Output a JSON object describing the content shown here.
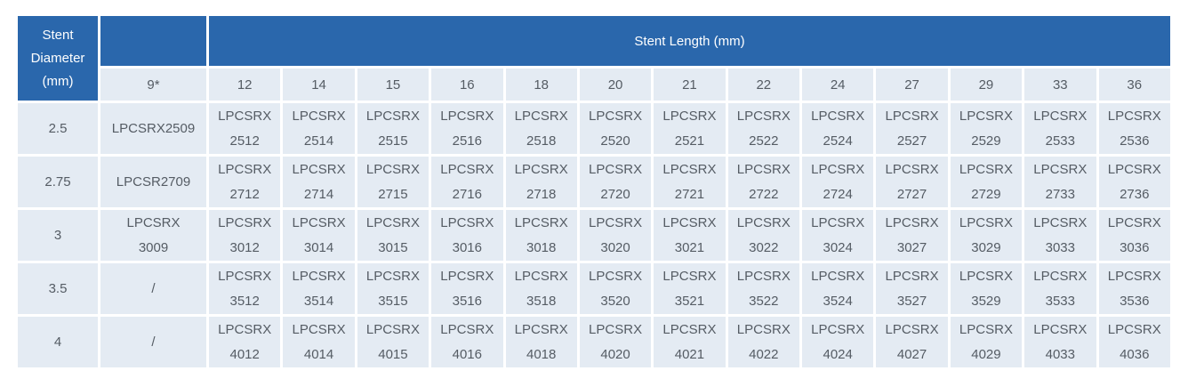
{
  "colors": {
    "header_blue": "#2a67ac",
    "cell_background": "#e4ebf3",
    "cell_text": "#555c64",
    "grid_white": "#ffffff"
  },
  "table": {
    "corner_header": "Stent\nDiameter\n(mm)",
    "group_header": "Stent Length (mm)",
    "length_headers": [
      "9*",
      "12",
      "14",
      "15",
      "16",
      "18",
      "20",
      "21",
      "22",
      "24",
      "27",
      "29",
      "33",
      "36"
    ],
    "rows": [
      {
        "diameter": "2.5",
        "cells": [
          "LPCSRX2509",
          "LPCSRX\n2512",
          "LPCSRX\n2514",
          "LPCSRX\n2515",
          "LPCSRX\n2516",
          "LPCSRX\n2518",
          "LPCSRX\n2520",
          "LPCSRX\n2521",
          "LPCSRX\n2522",
          "LPCSRX\n2524",
          "LPCSRX\n2527",
          "LPCSRX\n2529",
          "LPCSRX\n2533",
          "LPCSRX\n2536"
        ]
      },
      {
        "diameter": "2.75",
        "cells": [
          "LPCSR2709",
          "LPCSRX\n2712",
          "LPCSRX\n2714",
          "LPCSRX\n2715",
          "LPCSRX\n2716",
          "LPCSRX\n2718",
          "LPCSRX\n2720",
          "LPCSRX\n2721",
          "LPCSRX\n2722",
          "LPCSRX\n2724",
          "LPCSRX\n2727",
          "LPCSRX\n2729",
          "LPCSRX\n2733",
          "LPCSRX\n2736"
        ]
      },
      {
        "diameter": "3",
        "cells": [
          "LPCSRX\n3009",
          "LPCSRX\n3012",
          "LPCSRX\n3014",
          "LPCSRX\n3015",
          "LPCSRX\n3016",
          "LPCSRX\n3018",
          "LPCSRX\n3020",
          "LPCSRX\n3021",
          "LPCSRX\n3022",
          "LPCSRX\n3024",
          "LPCSRX\n3027",
          "LPCSRX\n3029",
          "LPCSRX\n3033",
          "LPCSRX\n3036"
        ]
      },
      {
        "diameter": "3.5",
        "cells": [
          "/",
          "LPCSRX\n3512",
          "LPCSRX\n3514",
          "LPCSRX\n3515",
          "LPCSRX\n3516",
          "LPCSRX\n3518",
          "LPCSRX\n3520",
          "LPCSRX\n3521",
          "LPCSRX\n3522",
          "LPCSRX\n3524",
          "LPCSRX\n3527",
          "LPCSRX\n3529",
          "LPCSRX\n3533",
          "LPCSRX\n3536"
        ]
      },
      {
        "diameter": "4",
        "cells": [
          "/",
          "LPCSRX\n4012",
          "LPCSRX\n4014",
          "LPCSRX\n4015",
          "LPCSRX\n4016",
          "LPCSRX\n4018",
          "LPCSRX\n4020",
          "LPCSRX\n4021",
          "LPCSRX\n4022",
          "LPCSRX\n4024",
          "LPCSRX\n4027",
          "LPCSRX\n4029",
          "LPCSRX\n4033",
          "LPCSRX\n4036"
        ]
      }
    ]
  },
  "chart_data": {
    "type": "table",
    "title": "Stent size matrix",
    "row_axis_label": "Stent Diameter (mm)",
    "column_axis_label": "Stent Length (mm)",
    "columns": [
      "9*",
      "12",
      "14",
      "15",
      "16",
      "18",
      "20",
      "21",
      "22",
      "24",
      "27",
      "29",
      "33",
      "36"
    ],
    "row_categories": [
      "2.5",
      "2.75",
      "3",
      "3.5",
      "4"
    ],
    "values": [
      [
        "LPCSRX2509",
        "LPCSRX 2512",
        "LPCSRX 2514",
        "LPCSRX 2515",
        "LPCSRX 2516",
        "LPCSRX 2518",
        "LPCSRX 2520",
        "LPCSRX 2521",
        "LPCSRX 2522",
        "LPCSRX 2524",
        "LPCSRX 2527",
        "LPCSRX 2529",
        "LPCSRX 2533",
        "LPCSRX 2536"
      ],
      [
        "LPCSR2709",
        "LPCSRX 2712",
        "LPCSRX 2714",
        "LPCSRX 2715",
        "LPCSRX 2716",
        "LPCSRX 2718",
        "LPCSRX 2720",
        "LPCSRX 2721",
        "LPCSRX 2722",
        "LPCSRX 2724",
        "LPCSRX 2727",
        "LPCSRX 2729",
        "LPCSRX 2733",
        "LPCSRX 2736"
      ],
      [
        "LPCSRX 3009",
        "LPCSRX 3012",
        "LPCSRX 3014",
        "LPCSRX 3015",
        "LPCSRX 3016",
        "LPCSRX 3018",
        "LPCSRX 3020",
        "LPCSRX 3021",
        "LPCSRX 3022",
        "LPCSRX 3024",
        "LPCSRX 3027",
        "LPCSRX 3029",
        "LPCSRX 3033",
        "LPCSRX 3036"
      ],
      [
        "/",
        "LPCSRX 3512",
        "LPCSRX 3514",
        "LPCSRX 3515",
        "LPCSRX 3516",
        "LPCSRX 3518",
        "LPCSRX 3520",
        "LPCSRX 3521",
        "LPCSRX 3522",
        "LPCSRX 3524",
        "LPCSRX 3527",
        "LPCSRX 3529",
        "LPCSRX 3533",
        "LPCSRX 3536"
      ],
      [
        "/",
        "LPCSRX 4012",
        "LPCSRX 4014",
        "LPCSRX 4015",
        "LPCSRX 4016",
        "LPCSRX 4018",
        "LPCSRX 4020",
        "LPCSRX 4021",
        "LPCSRX 4022",
        "LPCSRX 4024",
        "LPCSRX 4027",
        "LPCSRX 4029",
        "LPCSRX 4033",
        "LPCSRX 4036"
      ]
    ]
  }
}
